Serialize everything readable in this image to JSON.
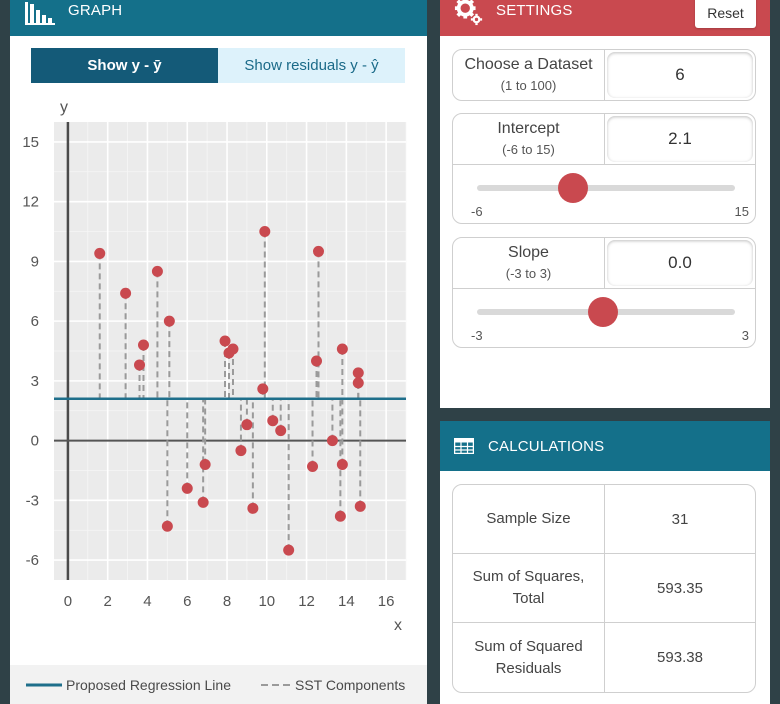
{
  "graph": {
    "title": "GRAPH",
    "toggle_yybar": "Show y - ȳ",
    "toggle_residuals": "Show residuals y - ŷ",
    "legend_line": "Proposed Regression Line",
    "legend_sst": "SST Components"
  },
  "settings": {
    "title": "SETTINGS",
    "reset_label": "Reset",
    "dataset": {
      "label": "Choose a Dataset",
      "range": "(1 to 100)",
      "value": "6"
    },
    "intercept": {
      "label": "Intercept",
      "range": "(-6 to 15)",
      "value": "2.1",
      "min": "-6",
      "max": "15"
    },
    "slope": {
      "label": "Slope",
      "range": "(-3 to 3)",
      "value": "0.0",
      "min": "-3",
      "max": "3"
    }
  },
  "calculations": {
    "title": "CALCULATIONS",
    "rows": [
      {
        "label": "Sample Size",
        "value": "31"
      },
      {
        "label": "Sum of Squares, Total",
        "value": "593.35"
      },
      {
        "label": "Sum of Squared Residuals",
        "value": "593.38"
      }
    ]
  },
  "colors": {
    "graph_header": "#14708a",
    "settings_header": "#c9494f",
    "toggle_active": "#145a78",
    "regression_line": "#1f6f8b",
    "point": "#c9494f",
    "sst_dash": "#9a9a9a"
  },
  "chart_data": {
    "type": "scatter",
    "xlabel": "x",
    "ylabel": "y",
    "xlim": [
      -0.7,
      17
    ],
    "ylim": [
      -7,
      16
    ],
    "xticks": [
      0,
      2,
      4,
      6,
      8,
      10,
      12,
      14,
      16
    ],
    "yticks": [
      -6,
      -3,
      0,
      3,
      6,
      9,
      12,
      15
    ],
    "line": {
      "intercept": 2.1,
      "slope": 0.0
    },
    "points": [
      {
        "x": 1.6,
        "y": 9.4
      },
      {
        "x": 2.9,
        "y": 7.4
      },
      {
        "x": 3.6,
        "y": 3.8
      },
      {
        "x": 3.8,
        "y": 4.8
      },
      {
        "x": 4.5,
        "y": 8.5
      },
      {
        "x": 5.0,
        "y": -4.3
      },
      {
        "x": 5.1,
        "y": 6.0
      },
      {
        "x": 6.0,
        "y": -2.4
      },
      {
        "x": 6.8,
        "y": -3.1
      },
      {
        "x": 6.9,
        "y": -1.2
      },
      {
        "x": 7.9,
        "y": 5.0
      },
      {
        "x": 8.1,
        "y": 4.4
      },
      {
        "x": 8.3,
        "y": 4.6
      },
      {
        "x": 8.7,
        "y": -0.5
      },
      {
        "x": 9.0,
        "y": 0.8
      },
      {
        "x": 9.3,
        "y": -3.4
      },
      {
        "x": 9.8,
        "y": 2.6
      },
      {
        "x": 9.9,
        "y": 10.5
      },
      {
        "x": 10.3,
        "y": 1.0
      },
      {
        "x": 10.7,
        "y": 0.5
      },
      {
        "x": 11.1,
        "y": -5.5
      },
      {
        "x": 12.3,
        "y": -1.3
      },
      {
        "x": 12.5,
        "y": 4.0
      },
      {
        "x": 12.6,
        "y": 9.5
      },
      {
        "x": 13.3,
        "y": 0.0
      },
      {
        "x": 13.7,
        "y": -3.8
      },
      {
        "x": 13.8,
        "y": 4.6
      },
      {
        "x": 13.8,
        "y": -1.2
      },
      {
        "x": 14.6,
        "y": 3.4
      },
      {
        "x": 14.6,
        "y": 2.9
      },
      {
        "x": 14.7,
        "y": -3.3
      }
    ]
  }
}
